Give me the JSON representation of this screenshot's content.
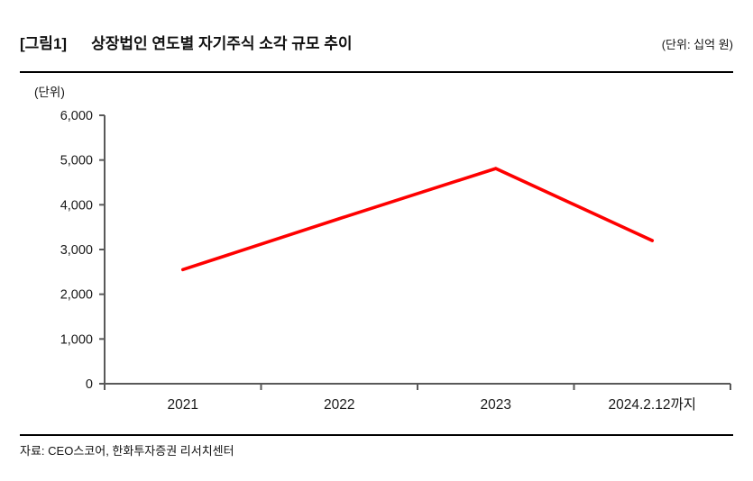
{
  "header": {
    "figure_label": "[그림1]",
    "title": "상장법인 연도별 자기주식 소각 규모 추이",
    "unit_note": "(단위: 십억 원)"
  },
  "chart_data": {
    "type": "line",
    "title": "상장법인 연도별 자기주식 소각 규모 추이",
    "unit_axis_label": "(단위)",
    "unit": "십억 원",
    "categories": [
      "2021",
      "2022",
      "2023",
      "2024.2.12까지"
    ],
    "series": [
      {
        "name": "자기주식 소각 규모",
        "color": "#fe0000",
        "values": [
          2550,
          3690,
          4810,
          3200
        ]
      }
    ],
    "ylim": [
      0,
      6000
    ],
    "ytick_step": 1000,
    "grid": false,
    "legend_position": "none",
    "axis_color": "#595959",
    "tick_label_color": "#1a1a1a"
  },
  "footer": {
    "source": "자료: CEO스코어, 한화투자증권 리서치센터"
  }
}
